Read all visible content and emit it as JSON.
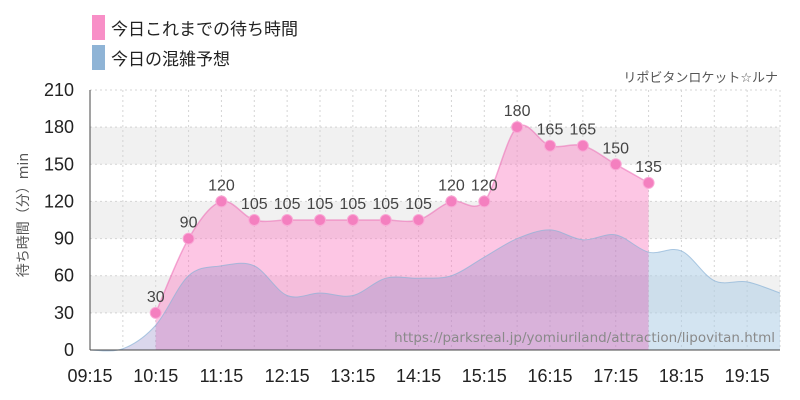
{
  "legend": {
    "items": [
      {
        "label": "今日これまでの待ち時間",
        "color": "#f88fc7"
      },
      {
        "label": "今日の混雑予想",
        "color": "#8fb4d6"
      }
    ]
  },
  "credit": "リポビタンロケット☆ルナ",
  "watermark": "https://parksreal.jp/yomiuriland/attraction/lipovitan.html",
  "chart_data": {
    "type": "area",
    "ylabel": "待ち時間（分）min",
    "ylim": [
      0,
      210
    ],
    "yticks": [
      0,
      30,
      60,
      90,
      120,
      150,
      180,
      210
    ],
    "x_ticks": [
      "09:15",
      "10:15",
      "11:15",
      "12:15",
      "13:15",
      "14:15",
      "15:15",
      "16:15",
      "17:15",
      "18:15",
      "19:15"
    ],
    "grid": true,
    "series": [
      {
        "name": "今日これまでの待ち時間",
        "color": "#f88fc7",
        "points": [
          {
            "x": "10:15",
            "y": 30
          },
          {
            "x": "10:45",
            "y": 90
          },
          {
            "x": "11:15",
            "y": 120
          },
          {
            "x": "11:45",
            "y": 105
          },
          {
            "x": "12:15",
            "y": 105
          },
          {
            "x": "12:45",
            "y": 105
          },
          {
            "x": "13:15",
            "y": 105
          },
          {
            "x": "13:45",
            "y": 105
          },
          {
            "x": "14:15",
            "y": 105
          },
          {
            "x": "14:45",
            "y": 120
          },
          {
            "x": "15:15",
            "y": 120
          },
          {
            "x": "15:45",
            "y": 180
          },
          {
            "x": "16:15",
            "y": 165
          },
          {
            "x": "16:45",
            "y": 165
          },
          {
            "x": "17:15",
            "y": 150
          },
          {
            "x": "17:45",
            "y": 135
          }
        ]
      },
      {
        "name": "今日の混雑予想",
        "color": "#8fb4d6",
        "points": [
          {
            "x": "09:15",
            "y": 0
          },
          {
            "x": "09:45",
            "y": 1
          },
          {
            "x": "10:15",
            "y": 20
          },
          {
            "x": "10:45",
            "y": 60
          },
          {
            "x": "11:15",
            "y": 68
          },
          {
            "x": "11:45",
            "y": 68
          },
          {
            "x": "12:15",
            "y": 44
          },
          {
            "x": "12:45",
            "y": 46
          },
          {
            "x": "13:15",
            "y": 44
          },
          {
            "x": "13:45",
            "y": 58
          },
          {
            "x": "14:15",
            "y": 58
          },
          {
            "x": "14:45",
            "y": 60
          },
          {
            "x": "15:15",
            "y": 75
          },
          {
            "x": "15:45",
            "y": 90
          },
          {
            "x": "16:15",
            "y": 97
          },
          {
            "x": "16:45",
            "y": 89
          },
          {
            "x": "17:15",
            "y": 93
          },
          {
            "x": "17:45",
            "y": 79
          },
          {
            "x": "18:15",
            "y": 80
          },
          {
            "x": "18:45",
            "y": 56
          },
          {
            "x": "19:15",
            "y": 55
          },
          {
            "x": "19:45",
            "y": 46
          }
        ]
      }
    ]
  }
}
